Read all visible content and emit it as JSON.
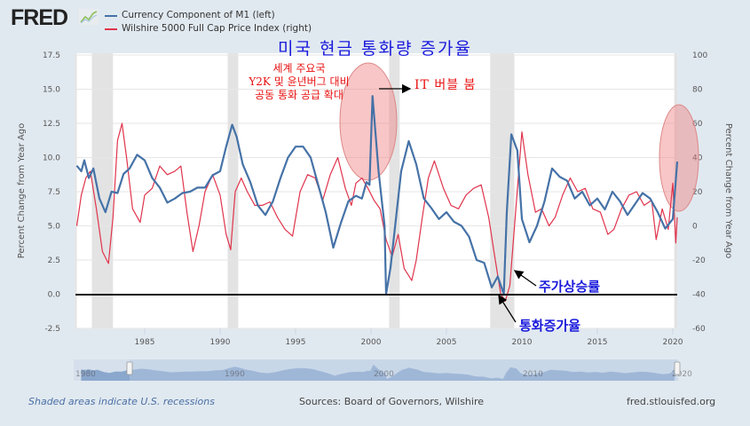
{
  "header": {
    "logo_text": "FRED",
    "logo_icon": "line-chart-icon"
  },
  "legend": [
    {
      "label": "Currency Component of M1 (left)",
      "color": "#4572a7"
    },
    {
      "label": "Wilshire 5000 Full Cap Price Index (right)",
      "color": "#e0344c"
    }
  ],
  "annotations": {
    "title": "미국 현금 통화량 증가율",
    "y2k_lines": [
      "세계 주요국",
      "Y2K 및 윤년버그 대비",
      "공동 통화 공급 확대"
    ],
    "it_bubble": "IT 버블 붐",
    "stock_rise": "주가상승률",
    "money_growth": "통화증가율"
  },
  "footer": {
    "recessions_note": "Shaded areas indicate U.S. recessions",
    "sources": "Sources: Board of Governors, Wilshire",
    "site": "fred.stlouisfed.org"
  },
  "navigator": {
    "labels": [
      "1980",
      "1990",
      "2000",
      "2010",
      "2020"
    ],
    "range_start": 1980.5,
    "range_end": 2020.3
  },
  "chart_data": {
    "type": "line",
    "title": "",
    "xlabel": "",
    "ylabel": "Percent Change from Year Ago",
    "ylabel_right": "Percent Change from Year Ago",
    "xlim": [
      1980.0,
      2020.6
    ],
    "ylim": [
      -2.5,
      17.5
    ],
    "ylim_right": [
      -60,
      100
    ],
    "x_ticks": [
      1985,
      1990,
      1995,
      2000,
      2005,
      2010,
      2015,
      2020
    ],
    "y_ticks": [
      "-2.5",
      "0.0",
      "2.5",
      "5.0",
      "7.5",
      "10.0",
      "12.5",
      "15.0",
      "17.5"
    ],
    "y_ticks_right": [
      "-60",
      "-40",
      "-20",
      "0",
      "20",
      "40",
      "60",
      "80",
      "100"
    ],
    "grid": true,
    "legend_position": "top-left",
    "recessions": [
      [
        1980.0,
        1980.5
      ],
      [
        1981.5,
        1982.9
      ],
      [
        1990.5,
        1991.2
      ],
      [
        2001.2,
        2001.9
      ],
      [
        2007.9,
        2009.5
      ],
      [
        2020.1,
        2020.5
      ]
    ],
    "zero_line": 0.0,
    "series": [
      {
        "name": "Currency Component of M1 (left)",
        "axis": "left",
        "color": "#4572a7",
        "x": [
          1980.5,
          1980.8,
          1981.0,
          1981.3,
          1981.6,
          1982.0,
          1982.4,
          1982.8,
          1983.2,
          1983.6,
          1984.0,
          1984.5,
          1985.0,
          1985.5,
          1986.0,
          1986.5,
          1987.0,
          1987.5,
          1988.0,
          1988.5,
          1989.0,
          1989.5,
          1990.0,
          1990.4,
          1990.8,
          1991.1,
          1991.5,
          1992.0,
          1992.5,
          1993.0,
          1993.5,
          1994.0,
          1994.5,
          1995.0,
          1995.5,
          1996.0,
          1996.5,
          1997.0,
          1997.5,
          1998.0,
          1998.5,
          1999.0,
          1999.4,
          1999.7,
          1999.9,
          2000.1,
          2000.5,
          2000.9,
          2001.0,
          2001.3,
          2001.7,
          2002.0,
          2002.5,
          2003.0,
          2003.5,
          2004.0,
          2004.5,
          2005.0,
          2005.5,
          2006.0,
          2006.5,
          2007.0,
          2007.5,
          2008.0,
          2008.4,
          2008.8,
          2009.0,
          2009.3,
          2009.7,
          2010.0,
          2010.5,
          2011.0,
          2011.5,
          2012.0,
          2012.5,
          2013.0,
          2013.5,
          2014.0,
          2014.5,
          2015.0,
          2015.5,
          2016.0,
          2016.5,
          2017.0,
          2017.5,
          2018.0,
          2018.5,
          2019.0,
          2019.5,
          2020.0,
          2020.3
        ],
        "values": [
          9.4,
          9.0,
          9.8,
          8.5,
          9.2,
          7.0,
          6.0,
          7.5,
          7.4,
          8.8,
          9.2,
          10.2,
          9.8,
          8.5,
          7.8,
          6.7,
          7.0,
          7.4,
          7.5,
          7.8,
          7.8,
          8.7,
          9.0,
          10.8,
          12.4,
          11.5,
          9.5,
          8.2,
          6.5,
          5.8,
          6.8,
          8.5,
          10.0,
          10.8,
          10.8,
          10.0,
          8.0,
          6.0,
          3.4,
          5.2,
          6.8,
          7.2,
          7.0,
          8.2,
          8.0,
          14.5,
          9.0,
          5.0,
          0.0,
          2.0,
          6.0,
          9.0,
          11.2,
          9.5,
          7.0,
          6.3,
          5.5,
          6.0,
          5.3,
          5.0,
          4.2,
          2.5,
          2.3,
          0.5,
          1.3,
          0.0,
          6.0,
          11.7,
          10.5,
          5.5,
          3.8,
          5.0,
          6.8,
          9.2,
          8.6,
          8.3,
          7.0,
          7.5,
          6.5,
          7.0,
          6.2,
          7.5,
          6.8,
          5.8,
          6.6,
          7.4,
          7.0,
          6.0,
          4.8,
          5.5,
          9.7
        ]
      },
      {
        "name": "Wilshire 5000 Full Cap Price Index (right)",
        "axis": "right",
        "color": "#e0344c",
        "x": [
          1980.5,
          1980.8,
          1981.1,
          1981.4,
          1981.8,
          1982.2,
          1982.6,
          1982.9,
          1983.2,
          1983.5,
          1983.8,
          1984.2,
          1984.7,
          1985.0,
          1985.5,
          1986.0,
          1986.5,
          1987.0,
          1987.4,
          1987.8,
          1988.2,
          1988.6,
          1989.0,
          1989.5,
          1990.0,
          1990.4,
          1990.7,
          1991.0,
          1991.4,
          1991.8,
          1992.3,
          1992.8,
          1993.3,
          1993.8,
          1994.3,
          1994.8,
          1995.3,
          1995.8,
          1996.3,
          1996.8,
          1997.3,
          1997.8,
          1998.3,
          1998.7,
          1999.0,
          1999.4,
          1999.8,
          2000.2,
          2000.6,
          2001.0,
          2001.4,
          2001.8,
          2002.2,
          2002.7,
          2003.0,
          2003.4,
          2003.8,
          2004.2,
          2004.8,
          2005.3,
          2005.8,
          2006.3,
          2006.8,
          2007.3,
          2007.8,
          2008.2,
          2008.6,
          2008.9,
          2009.2,
          2009.6,
          2010.0,
          2010.4,
          2010.9,
          2011.3,
          2011.8,
          2012.2,
          2012.7,
          2013.2,
          2013.7,
          2014.2,
          2014.7,
          2015.2,
          2015.7,
          2016.1,
          2016.6,
          2017.1,
          2017.6,
          2018.1,
          2018.6,
          2018.9,
          2019.3,
          2019.7,
          2020.0,
          2020.2,
          2020.4
        ],
        "values": [
          0,
          18,
          28,
          32,
          10,
          -15,
          -22,
          5,
          50,
          60,
          40,
          10,
          2,
          18,
          22,
          35,
          30,
          32,
          35,
          8,
          -15,
          0,
          20,
          30,
          18,
          -5,
          -14,
          20,
          28,
          20,
          12,
          12,
          14,
          5,
          -2,
          -6,
          20,
          30,
          28,
          15,
          30,
          40,
          22,
          12,
          25,
          28,
          22,
          15,
          10,
          -8,
          -18,
          -5,
          -25,
          -32,
          -20,
          5,
          28,
          38,
          22,
          12,
          10,
          18,
          22,
          24,
          5,
          -18,
          -40,
          -44,
          -35,
          10,
          55,
          30,
          8,
          10,
          0,
          5,
          18,
          28,
          20,
          22,
          10,
          8,
          -5,
          -2,
          10,
          18,
          20,
          12,
          15,
          -8,
          10,
          -2,
          25,
          -10,
          5
        ]
      }
    ]
  }
}
